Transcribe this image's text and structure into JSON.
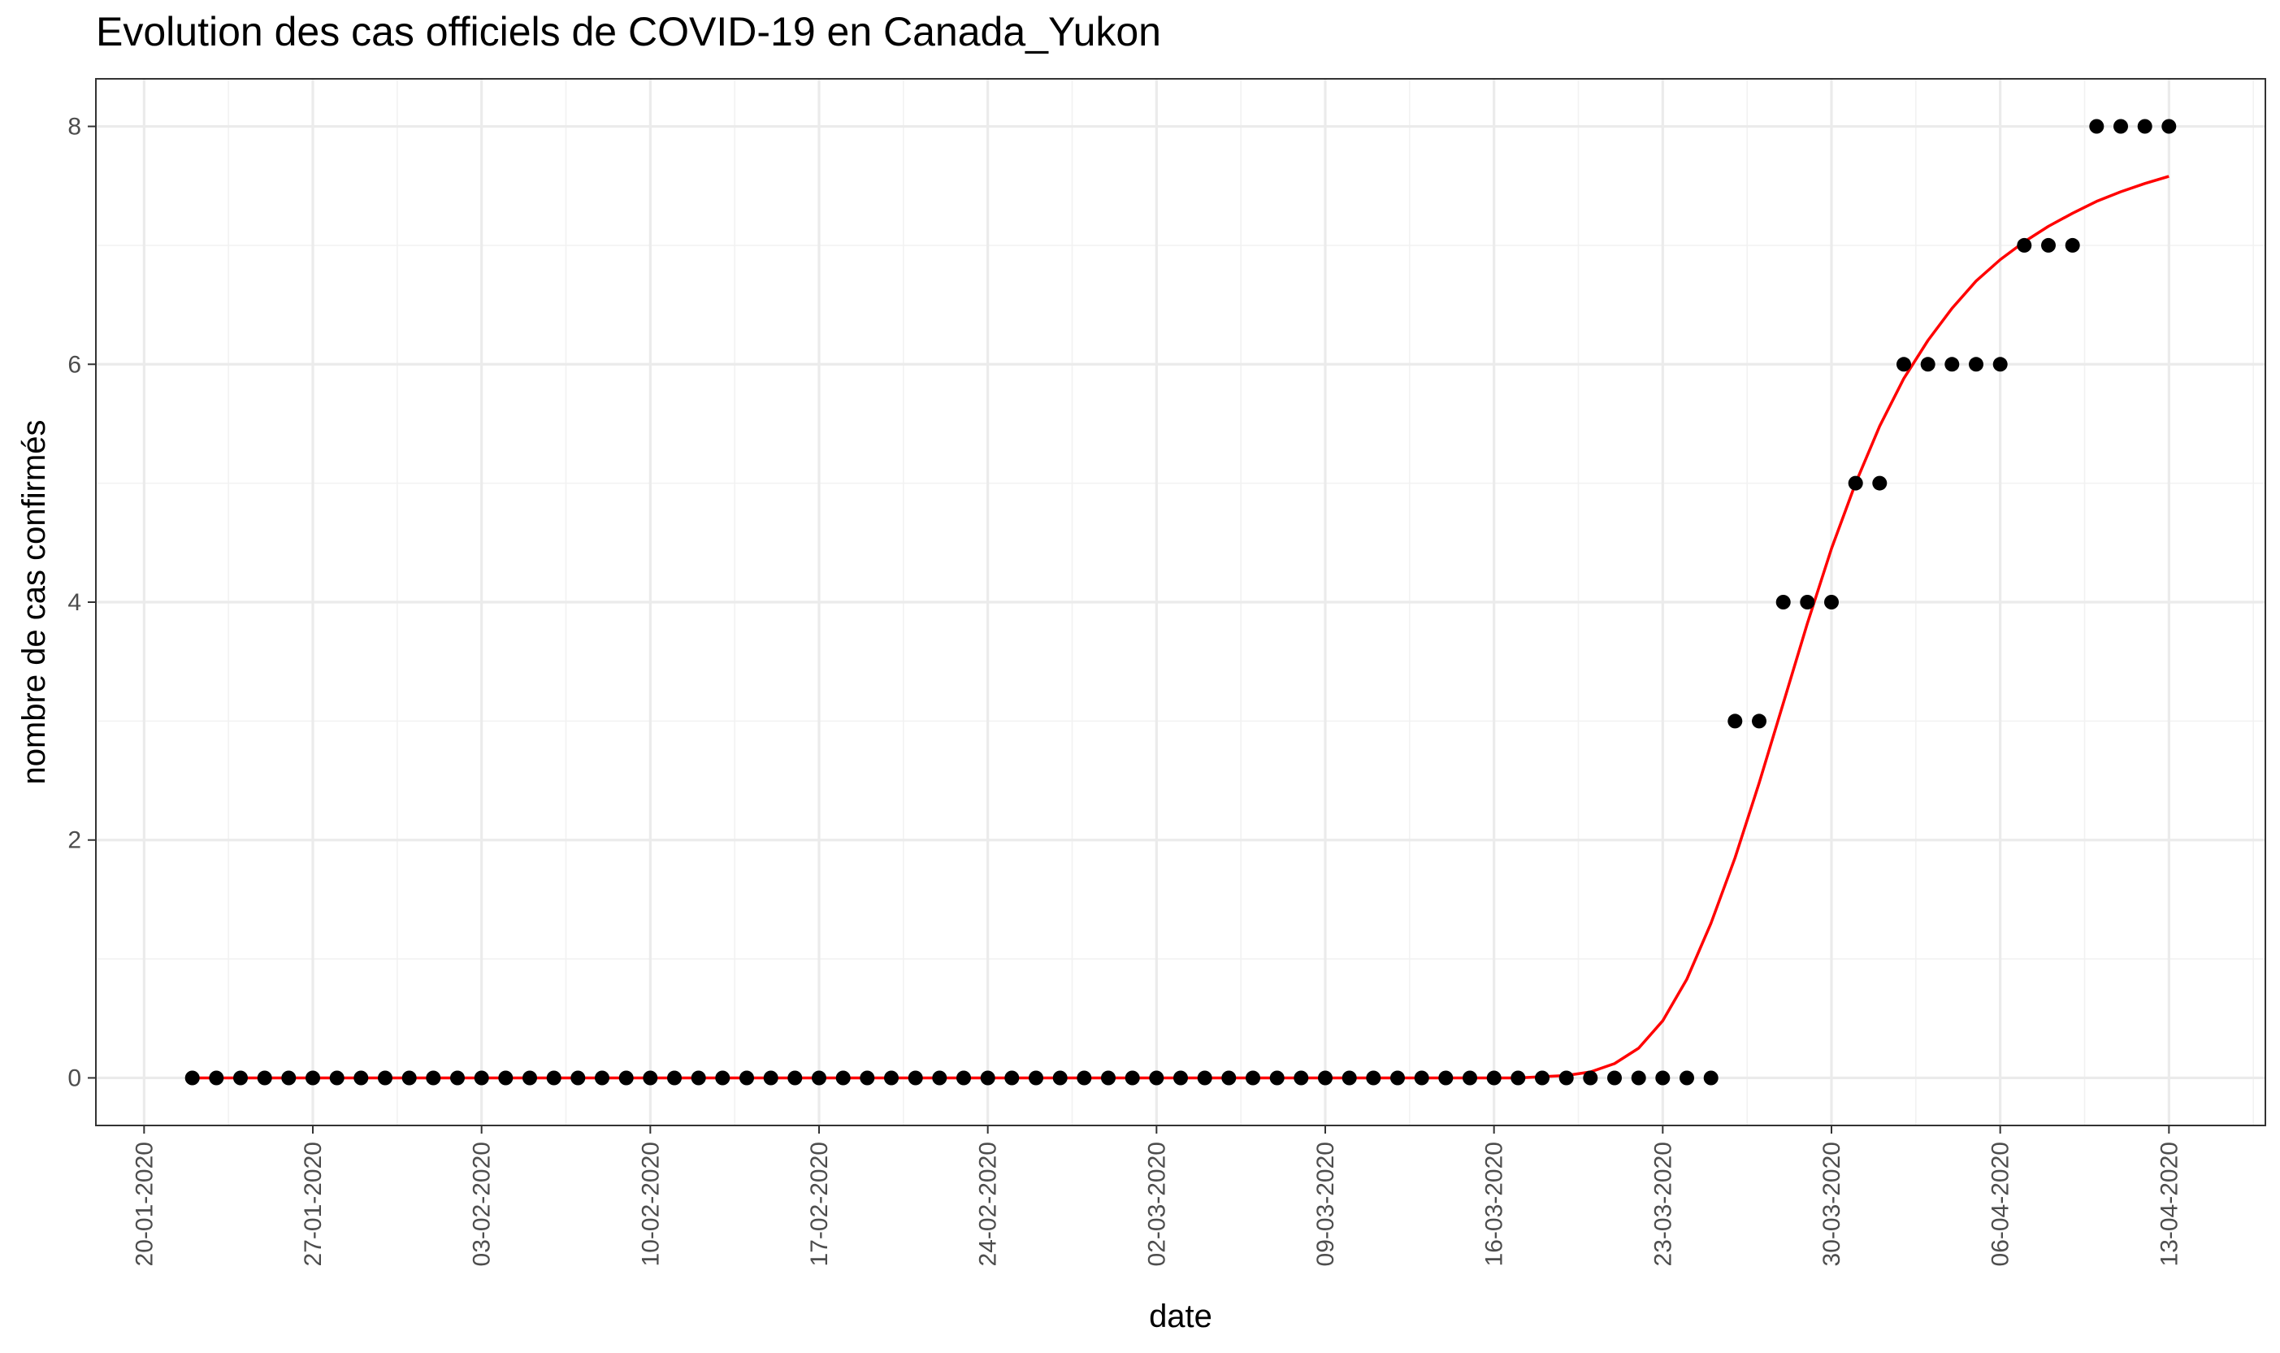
{
  "chart_data": {
    "type": "scatter",
    "title": "Evolution des cas officiels de COVID-19 en Canada_Yukon",
    "xlabel": "date",
    "ylabel": "nombre de cas confirmés",
    "x_type": "date",
    "x_range": [
      "2020-01-18",
      "2020-04-17"
    ],
    "ylim": [
      -0.4,
      8.4
    ],
    "x_ticks": [
      "2020-01-20",
      "2020-01-27",
      "2020-02-03",
      "2020-02-10",
      "2020-02-17",
      "2020-02-24",
      "2020-03-02",
      "2020-03-09",
      "2020-03-16",
      "2020-03-23",
      "2020-03-30",
      "2020-04-06",
      "2020-04-13"
    ],
    "x_tick_labels": [
      "20-01-2020",
      "27-01-2020",
      "03-02-2020",
      "10-02-2020",
      "17-02-2020",
      "24-02-2020",
      "02-03-2020",
      "09-03-2020",
      "16-03-2020",
      "23-03-2020",
      "30-03-2020",
      "06-04-2020",
      "13-04-2020"
    ],
    "y_ticks": [
      0,
      2,
      4,
      6,
      8
    ],
    "y_tick_labels": [
      "0",
      "2",
      "4",
      "6",
      "8"
    ],
    "grid": true,
    "theme": "bw",
    "series": [
      {
        "type": "scatter",
        "color": "#000000",
        "points": [
          [
            "2020-01-22",
            0
          ],
          [
            "2020-01-23",
            0
          ],
          [
            "2020-01-24",
            0
          ],
          [
            "2020-01-25",
            0
          ],
          [
            "2020-01-26",
            0
          ],
          [
            "2020-01-27",
            0
          ],
          [
            "2020-01-28",
            0
          ],
          [
            "2020-01-29",
            0
          ],
          [
            "2020-01-30",
            0
          ],
          [
            "2020-01-31",
            0
          ],
          [
            "2020-02-01",
            0
          ],
          [
            "2020-02-02",
            0
          ],
          [
            "2020-02-03",
            0
          ],
          [
            "2020-02-04",
            0
          ],
          [
            "2020-02-05",
            0
          ],
          [
            "2020-02-06",
            0
          ],
          [
            "2020-02-07",
            0
          ],
          [
            "2020-02-08",
            0
          ],
          [
            "2020-02-09",
            0
          ],
          [
            "2020-02-10",
            0
          ],
          [
            "2020-02-11",
            0
          ],
          [
            "2020-02-12",
            0
          ],
          [
            "2020-02-13",
            0
          ],
          [
            "2020-02-14",
            0
          ],
          [
            "2020-02-15",
            0
          ],
          [
            "2020-02-16",
            0
          ],
          [
            "2020-02-17",
            0
          ],
          [
            "2020-02-18",
            0
          ],
          [
            "2020-02-19",
            0
          ],
          [
            "2020-02-20",
            0
          ],
          [
            "2020-02-21",
            0
          ],
          [
            "2020-02-22",
            0
          ],
          [
            "2020-02-23",
            0
          ],
          [
            "2020-02-24",
            0
          ],
          [
            "2020-02-25",
            0
          ],
          [
            "2020-02-26",
            0
          ],
          [
            "2020-02-27",
            0
          ],
          [
            "2020-02-28",
            0
          ],
          [
            "2020-02-29",
            0
          ],
          [
            "2020-03-01",
            0
          ],
          [
            "2020-03-02",
            0
          ],
          [
            "2020-03-03",
            0
          ],
          [
            "2020-03-04",
            0
          ],
          [
            "2020-03-05",
            0
          ],
          [
            "2020-03-06",
            0
          ],
          [
            "2020-03-07",
            0
          ],
          [
            "2020-03-08",
            0
          ],
          [
            "2020-03-09",
            0
          ],
          [
            "2020-03-10",
            0
          ],
          [
            "2020-03-11",
            0
          ],
          [
            "2020-03-12",
            0
          ],
          [
            "2020-03-13",
            0
          ],
          [
            "2020-03-14",
            0
          ],
          [
            "2020-03-15",
            0
          ],
          [
            "2020-03-16",
            0
          ],
          [
            "2020-03-17",
            0
          ],
          [
            "2020-03-18",
            0
          ],
          [
            "2020-03-19",
            0
          ],
          [
            "2020-03-20",
            0
          ],
          [
            "2020-03-21",
            0
          ],
          [
            "2020-03-22",
            0
          ],
          [
            "2020-03-23",
            0
          ],
          [
            "2020-03-24",
            0
          ],
          [
            "2020-03-25",
            0
          ],
          [
            "2020-03-26",
            3
          ],
          [
            "2020-03-27",
            3
          ],
          [
            "2020-03-28",
            4
          ],
          [
            "2020-03-29",
            4
          ],
          [
            "2020-03-30",
            4
          ],
          [
            "2020-03-31",
            5
          ],
          [
            "2020-04-01",
            5
          ],
          [
            "2020-04-02",
            6
          ],
          [
            "2020-04-03",
            6
          ],
          [
            "2020-04-04",
            6
          ],
          [
            "2020-04-05",
            6
          ],
          [
            "2020-04-06",
            6
          ],
          [
            "2020-04-07",
            7
          ],
          [
            "2020-04-08",
            7
          ],
          [
            "2020-04-09",
            7
          ],
          [
            "2020-04-10",
            8
          ],
          [
            "2020-04-11",
            8
          ],
          [
            "2020-04-12",
            8
          ],
          [
            "2020-04-13",
            8
          ]
        ]
      },
      {
        "type": "line",
        "color": "#ff0000",
        "points": [
          [
            "2020-01-22",
            0
          ],
          [
            "2020-03-17",
            0
          ],
          [
            "2020-03-18",
            0.01
          ],
          [
            "2020-03-19",
            0.02
          ],
          [
            "2020-03-20",
            0.05
          ],
          [
            "2020-03-21",
            0.12
          ],
          [
            "2020-03-22",
            0.25
          ],
          [
            "2020-03-23",
            0.48
          ],
          [
            "2020-03-24",
            0.83
          ],
          [
            "2020-03-25",
            1.3
          ],
          [
            "2020-03-26",
            1.85
          ],
          [
            "2020-03-27",
            2.48
          ],
          [
            "2020-03-28",
            3.15
          ],
          [
            "2020-03-29",
            3.82
          ],
          [
            "2020-03-30",
            4.45
          ],
          [
            "2020-03-31",
            5.0
          ],
          [
            "2020-04-01",
            5.48
          ],
          [
            "2020-04-02",
            5.88
          ],
          [
            "2020-04-03",
            6.2
          ],
          [
            "2020-04-04",
            6.47
          ],
          [
            "2020-04-05",
            6.7
          ],
          [
            "2020-04-06",
            6.88
          ],
          [
            "2020-04-07",
            7.03
          ],
          [
            "2020-04-08",
            7.16
          ],
          [
            "2020-04-09",
            7.27
          ],
          [
            "2020-04-10",
            7.37
          ],
          [
            "2020-04-11",
            7.45
          ],
          [
            "2020-04-12",
            7.52
          ],
          [
            "2020-04-13",
            7.58
          ]
        ]
      }
    ]
  }
}
